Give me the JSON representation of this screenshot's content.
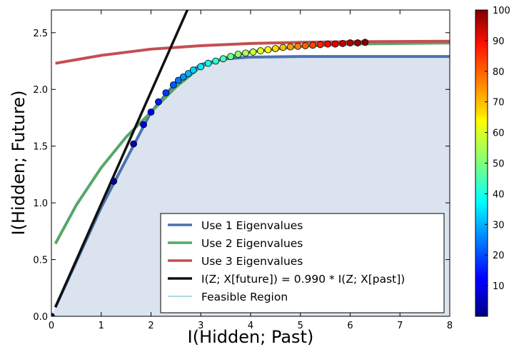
{
  "chart_data": {
    "type": "line",
    "xlabel": "I(Hidden; Past)",
    "ylabel": "I(Hidden; Future)",
    "xlim": [
      0,
      8
    ],
    "ylim": [
      0,
      2.7
    ],
    "xticks": [
      "0",
      "1",
      "2",
      "3",
      "4",
      "5",
      "6",
      "7",
      "8"
    ],
    "yticks": [
      "0.0",
      "0.5",
      "1.0",
      "1.5",
      "2.0",
      "2.5"
    ],
    "grid": false,
    "legend_position": "lower right",
    "colorbar": {
      "range": [
        0,
        100
      ],
      "ticks": [
        "10",
        "20",
        "30",
        "40",
        "50",
        "60",
        "70",
        "80",
        "90",
        "100"
      ]
    },
    "feasible_region": {
      "label": "Feasible Region",
      "color": "#b0c4de",
      "boundary": [
        [
          0,
          0
        ],
        [
          1,
          0.96
        ],
        [
          2,
          1.8
        ],
        [
          2.5,
          2.06
        ],
        [
          3,
          2.22
        ],
        [
          3.5,
          2.27
        ],
        [
          4,
          2.285
        ],
        [
          5,
          2.29
        ],
        [
          8,
          2.29
        ]
      ]
    },
    "series": [
      {
        "name": "Use 1 Eigenvalues",
        "color": "#4c72b0",
        "points": [
          [
            0.08,
            0.08
          ],
          [
            1,
            0.96
          ],
          [
            2,
            1.8
          ],
          [
            2.5,
            2.06
          ],
          [
            3,
            2.22
          ],
          [
            3.5,
            2.27
          ],
          [
            4,
            2.285
          ],
          [
            5,
            2.29
          ],
          [
            8,
            2.29
          ]
        ]
      },
      {
        "name": "Use 2 Eigenvalues",
        "color": "#55a868",
        "points": [
          [
            0.08,
            0.64
          ],
          [
            0.5,
            0.98
          ],
          [
            1,
            1.31
          ],
          [
            1.5,
            1.58
          ],
          [
            2,
            1.8
          ],
          [
            2.5,
            2.02
          ],
          [
            3,
            2.2
          ],
          [
            3.5,
            2.28
          ],
          [
            4,
            2.33
          ],
          [
            5,
            2.38
          ],
          [
            6,
            2.4
          ],
          [
            8,
            2.41
          ]
        ]
      },
      {
        "name": "Use 3 Eigenvalues",
        "color": "#c44e52",
        "points": [
          [
            0.08,
            2.23
          ],
          [
            1,
            2.3
          ],
          [
            2,
            2.355
          ],
          [
            3,
            2.385
          ],
          [
            4,
            2.405
          ],
          [
            5,
            2.415
          ],
          [
            6,
            2.42
          ],
          [
            8,
            2.425
          ]
        ]
      },
      {
        "name": "I(Z; X[future]) = 0.990 * I(Z; X[past])",
        "color": "#111111",
        "points": [
          [
            0.08,
            0.08
          ],
          [
            2.73,
            2.7
          ]
        ]
      }
    ],
    "scatter": {
      "x": [
        0,
        1.25,
        1.65,
        1.85,
        2.0,
        2.15,
        2.3,
        2.45,
        2.55,
        2.65,
        2.75,
        2.85,
        3.0,
        3.15,
        3.3,
        3.45,
        3.6,
        3.75,
        3.9,
        4.05,
        4.2,
        4.35,
        4.5,
        4.65,
        4.8,
        4.95,
        5.1,
        5.25,
        5.4,
        5.55,
        5.7,
        5.85,
        6.0,
        6.15,
        6.3
      ],
      "y": [
        0,
        1.19,
        1.52,
        1.69,
        1.8,
        1.89,
        1.97,
        2.04,
        2.08,
        2.11,
        2.14,
        2.17,
        2.2,
        2.23,
        2.25,
        2.27,
        2.29,
        2.31,
        2.32,
        2.33,
        2.34,
        2.35,
        2.36,
        2.37,
        2.375,
        2.38,
        2.385,
        2.39,
        2.395,
        2.4,
        2.4,
        2.405,
        2.41,
        2.41,
        2.415
      ],
      "color_values": [
        1,
        3,
        6,
        9,
        12,
        15,
        18,
        21,
        24,
        27,
        30,
        33,
        36,
        39,
        42,
        45,
        48,
        51,
        54,
        57,
        60,
        63,
        66,
        69,
        72,
        75,
        78,
        81,
        84,
        87,
        90,
        93,
        95,
        98,
        100
      ]
    }
  }
}
